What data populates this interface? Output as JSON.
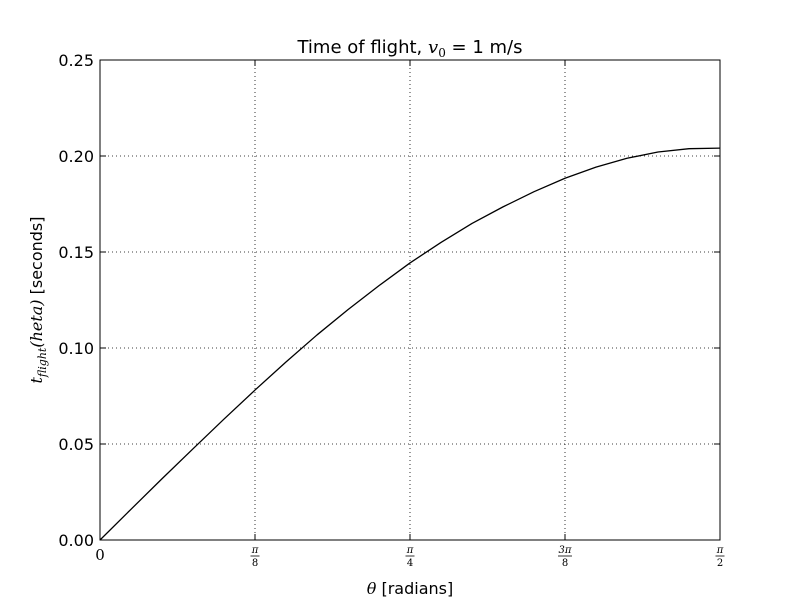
{
  "chart_data": {
    "type": "line",
    "title": {
      "prefix": "Time of flight, ",
      "var": "v",
      "sub": "0",
      "rest": " = 1 m/s"
    },
    "xlabel": {
      "symbol": "θ",
      "rest": " [radians]"
    },
    "ylabel": {
      "var": "t",
      "sub": "flight",
      "arg": "(heta)",
      "rest": " [seconds]"
    },
    "xlim": [
      0,
      1.5707963
    ],
    "ylim": [
      0,
      0.25
    ],
    "grid": true,
    "xticks": [
      {
        "value": 0,
        "kind": "plain",
        "text": "0"
      },
      {
        "value": 0.3926991,
        "kind": "frac",
        "num": "π",
        "den": "8"
      },
      {
        "value": 0.7853982,
        "kind": "frac",
        "num": "π",
        "den": "4"
      },
      {
        "value": 1.1780972,
        "kind": "frac",
        "num": "3π",
        "den": "8"
      },
      {
        "value": 1.5707963,
        "kind": "frac",
        "num": "π",
        "den": "2"
      }
    ],
    "yticks": [
      {
        "value": 0.0,
        "text": "0.00"
      },
      {
        "value": 0.05,
        "text": "0.05"
      },
      {
        "value": 0.1,
        "text": "0.10"
      },
      {
        "value": 0.15,
        "text": "0.15"
      },
      {
        "value": 0.2,
        "text": "0.20"
      },
      {
        "value": 0.25,
        "text": "0.25"
      }
    ],
    "series": [
      {
        "color": "#000000",
        "x": [
          0,
          0.0785,
          0.1571,
          0.2356,
          0.3142,
          0.3927,
          0.4712,
          0.5498,
          0.6283,
          0.7069,
          0.7854,
          0.8639,
          0.9425,
          1.021,
          1.0996,
          1.1781,
          1.2566,
          1.3352,
          1.4137,
          1.4923,
          1.5708
        ],
        "y": [
          0,
          0.016,
          0.0319,
          0.0475,
          0.063,
          0.0781,
          0.0927,
          0.1068,
          0.12,
          0.1325,
          0.1443,
          0.155,
          0.1649,
          0.1735,
          0.1814,
          0.1884,
          0.1942,
          0.1988,
          0.2021,
          0.2038,
          0.2041
        ]
      }
    ]
  }
}
